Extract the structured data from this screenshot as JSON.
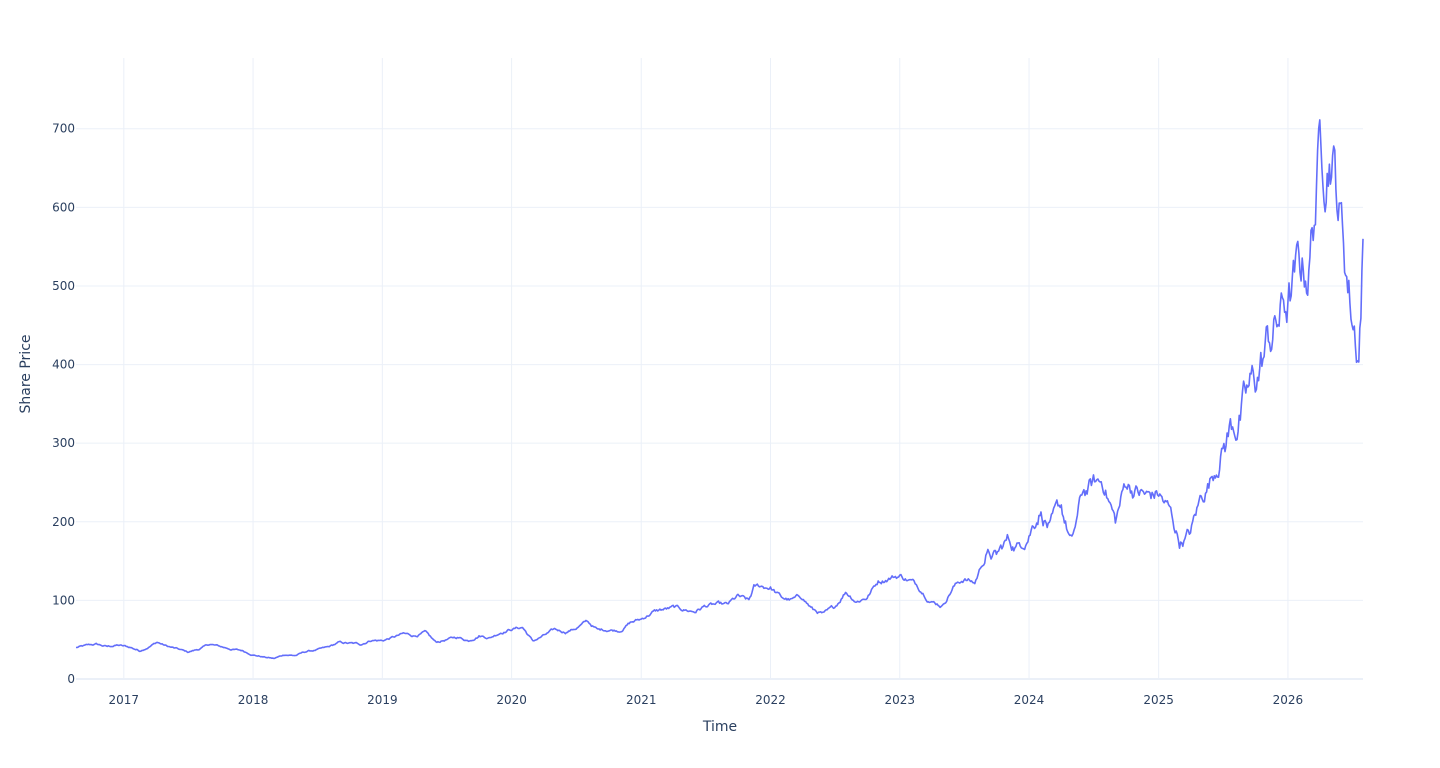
{
  "chart_data": {
    "type": "line",
    "title": "",
    "xlabel": "Time",
    "ylabel": "Share Price",
    "x_tick_labels": [
      "2017",
      "2018",
      "2019",
      "2020",
      "2021",
      "2022",
      "2023",
      "2024",
      "2025",
      "2026"
    ],
    "y_tick_labels": [
      "0",
      "100",
      "200",
      "300",
      "400",
      "500",
      "600",
      "700"
    ],
    "y_ticks": [
      0,
      100,
      200,
      300,
      400,
      500,
      600,
      700
    ],
    "xlim": [
      "2016-08-19",
      "2026-08-01"
    ],
    "ylim": [
      0,
      790
    ],
    "grid": true,
    "legend": "none",
    "line_color": "#636efa",
    "series": [
      {
        "values": [
          {
            "x": "2016-08-19",
            "y": 40
          },
          {
            "x": "2016-09-15",
            "y": 42
          },
          {
            "x": "2016-10-15",
            "y": 44
          },
          {
            "x": "2016-11-15",
            "y": 41
          },
          {
            "x": "2016-12-15",
            "y": 43
          },
          {
            "x": "2017-01-20",
            "y": 40
          },
          {
            "x": "2017-02-15",
            "y": 36
          },
          {
            "x": "2017-03-15",
            "y": 42
          },
          {
            "x": "2017-04-05",
            "y": 47
          },
          {
            "x": "2017-05-01",
            "y": 42
          },
          {
            "x": "2017-06-01",
            "y": 38
          },
          {
            "x": "2017-07-01",
            "y": 34
          },
          {
            "x": "2017-08-01",
            "y": 38
          },
          {
            "x": "2017-09-01",
            "y": 44
          },
          {
            "x": "2017-10-01",
            "y": 41
          },
          {
            "x": "2017-11-01",
            "y": 38
          },
          {
            "x": "2017-12-01",
            "y": 36
          },
          {
            "x": "2018-01-01",
            "y": 31
          },
          {
            "x": "2018-02-01",
            "y": 28
          },
          {
            "x": "2018-03-01",
            "y": 26
          },
          {
            "x": "2018-04-01",
            "y": 31
          },
          {
            "x": "2018-05-01",
            "y": 30
          },
          {
            "x": "2018-06-01",
            "y": 35
          },
          {
            "x": "2018-07-01",
            "y": 37
          },
          {
            "x": "2018-08-01",
            "y": 40
          },
          {
            "x": "2018-09-01",
            "y": 46
          },
          {
            "x": "2018-10-01",
            "y": 45
          },
          {
            "x": "2018-11-01",
            "y": 44
          },
          {
            "x": "2018-12-01",
            "y": 50
          },
          {
            "x": "2019-01-01",
            "y": 49
          },
          {
            "x": "2019-02-01",
            "y": 53
          },
          {
            "x": "2019-03-01",
            "y": 57
          },
          {
            "x": "2019-04-01",
            "y": 55
          },
          {
            "x": "2019-05-01",
            "y": 59
          },
          {
            "x": "2019-06-01",
            "y": 46
          },
          {
            "x": "2019-07-01",
            "y": 50
          },
          {
            "x": "2019-08-01",
            "y": 53
          },
          {
            "x": "2019-09-01",
            "y": 49
          },
          {
            "x": "2019-10-01",
            "y": 56
          },
          {
            "x": "2019-11-01",
            "y": 53
          },
          {
            "x": "2019-12-01",
            "y": 60
          },
          {
            "x": "2020-01-01",
            "y": 64
          },
          {
            "x": "2020-02-01",
            "y": 66
          },
          {
            "x": "2020-03-01",
            "y": 48
          },
          {
            "x": "2020-04-01",
            "y": 55
          },
          {
            "x": "2020-05-01",
            "y": 62
          },
          {
            "x": "2020-06-01",
            "y": 60
          },
          {
            "x": "2020-07-01",
            "y": 65
          },
          {
            "x": "2020-08-01",
            "y": 73
          },
          {
            "x": "2020-09-01",
            "y": 62
          },
          {
            "x": "2020-10-01",
            "y": 63
          },
          {
            "x": "2020-11-01",
            "y": 62
          },
          {
            "x": "2020-12-01",
            "y": 72
          },
          {
            "x": "2021-01-01",
            "y": 76
          },
          {
            "x": "2021-02-01",
            "y": 85
          },
          {
            "x": "2021-03-01",
            "y": 88
          },
          {
            "x": "2021-04-01",
            "y": 90
          },
          {
            "x": "2021-05-01",
            "y": 88
          },
          {
            "x": "2021-06-01",
            "y": 86
          },
          {
            "x": "2021-07-01",
            "y": 93
          },
          {
            "x": "2021-08-01",
            "y": 94
          },
          {
            "x": "2021-09-01",
            "y": 93
          },
          {
            "x": "2021-10-01",
            "y": 104
          },
          {
            "x": "2021-11-01",
            "y": 98
          },
          {
            "x": "2021-11-15",
            "y": 115
          },
          {
            "x": "2021-12-01",
            "y": 117
          },
          {
            "x": "2022-01-01",
            "y": 117
          },
          {
            "x": "2022-02-01",
            "y": 103
          },
          {
            "x": "2022-03-01",
            "y": 100
          },
          {
            "x": "2022-04-01",
            "y": 104
          },
          {
            "x": "2022-05-01",
            "y": 88
          },
          {
            "x": "2022-06-01",
            "y": 82
          },
          {
            "x": "2022-07-01",
            "y": 90
          },
          {
            "x": "2022-08-01",
            "y": 112
          },
          {
            "x": "2022-09-01",
            "y": 100
          },
          {
            "x": "2022-10-01",
            "y": 105
          },
          {
            "x": "2022-11-01",
            "y": 125
          },
          {
            "x": "2022-12-01",
            "y": 130
          },
          {
            "x": "2023-01-01",
            "y": 132
          },
          {
            "x": "2023-02-01",
            "y": 125
          },
          {
            "x": "2023-03-01",
            "y": 115
          },
          {
            "x": "2023-04-01",
            "y": 100
          },
          {
            "x": "2023-05-01",
            "y": 94
          },
          {
            "x": "2023-06-01",
            "y": 118
          },
          {
            "x": "2023-07-01",
            "y": 128
          },
          {
            "x": "2023-08-01",
            "y": 122
          },
          {
            "x": "2023-09-01",
            "y": 160
          },
          {
            "x": "2023-10-01",
            "y": 155
          },
          {
            "x": "2023-11-01",
            "y": 175
          },
          {
            "x": "2023-12-01",
            "y": 168
          },
          {
            "x": "2024-01-01",
            "y": 190
          },
          {
            "x": "2024-02-01",
            "y": 220
          },
          {
            "x": "2024-03-01",
            "y": 192
          },
          {
            "x": "2024-04-01",
            "y": 215
          },
          {
            "x": "2024-05-01",
            "y": 170
          },
          {
            "x": "2024-06-01",
            "y": 235
          },
          {
            "x": "2024-07-01",
            "y": 245
          },
          {
            "x": "2024-08-01",
            "y": 250
          },
          {
            "x": "2024-09-01",
            "y": 200
          },
          {
            "x": "2024-10-01",
            "y": 250
          },
          {
            "x": "2024-11-01",
            "y": 240
          },
          {
            "x": "2024-12-01",
            "y": 230
          },
          {
            "x": "2025-01-01",
            "y": 235
          },
          {
            "x": "2025-02-01",
            "y": 212
          },
          {
            "x": "2025-03-01",
            "y": 175
          },
          {
            "x": "2025-04-01",
            "y": 185
          },
          {
            "x": "2025-05-01",
            "y": 230
          },
          {
            "x": "2025-06-01",
            "y": 260
          },
          {
            "x": "2025-07-01",
            "y": 300
          },
          {
            "x": "2025-08-01",
            "y": 330
          },
          {
            "x": "2025-09-01",
            "y": 345
          },
          {
            "x": "2025-10-01",
            "y": 375
          },
          {
            "x": "2025-11-01",
            "y": 420
          },
          {
            "x": "2025-12-01",
            "y": 450
          },
          {
            "x": "2026-01-01",
            "y": 480
          },
          {
            "x": "2026-02-01",
            "y": 505
          },
          {
            "x": "2026-03-01",
            "y": 530
          },
          {
            "x": "2026-04-01",
            "y": 670
          },
          {
            "x": "2026-05-01",
            "y": 710
          },
          {
            "x": "2026-06-01",
            "y": 580
          },
          {
            "x": "2026-07-01",
            "y": 470
          },
          {
            "x": "2026-07-20",
            "y": 425
          },
          {
            "x": "2026-08-01",
            "y": 560
          }
        ]
      }
    ]
  }
}
